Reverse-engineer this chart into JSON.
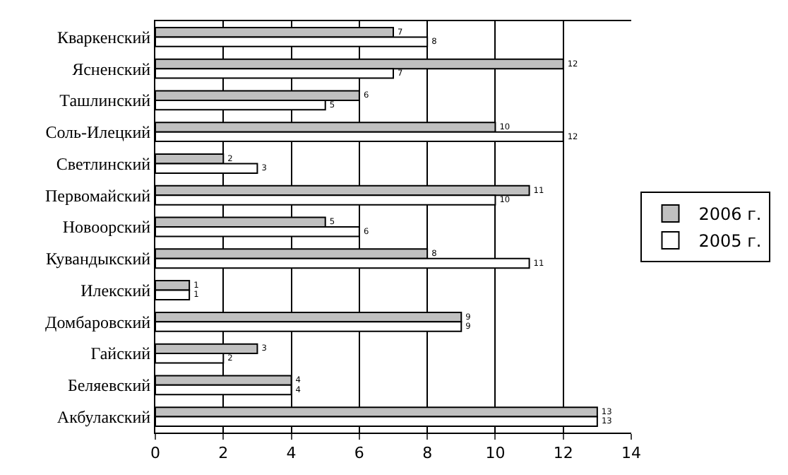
{
  "chart_data": {
    "type": "bar",
    "orientation": "horizontal",
    "categories": [
      "Кваркенский",
      "Ясненский",
      "Ташлинский",
      "Соль-Илецкий",
      "Светлинский",
      "Первомайский",
      "Новоорский",
      "Кувандыкский",
      "Илекский",
      "Домбаровский",
      "Гайский",
      "Беляевский",
      "Акбулакский"
    ],
    "series": [
      {
        "name": "2006 г.",
        "color": "#c0c0c0",
        "values": [
          7,
          12,
          6,
          10,
          2,
          11,
          5,
          8,
          1,
          9,
          3,
          4,
          13
        ]
      },
      {
        "name": "2005 г.",
        "color": "#ffffff",
        "values": [
          8,
          7,
          5,
          12,
          3,
          10,
          6,
          11,
          1,
          9,
          2,
          4,
          13
        ]
      }
    ],
    "xlim": [
      0,
      14
    ],
    "xticks": [
      0,
      2,
      4,
      6,
      8,
      10,
      12,
      14
    ],
    "grid": "x",
    "legend": "right",
    "data_labels": true
  }
}
